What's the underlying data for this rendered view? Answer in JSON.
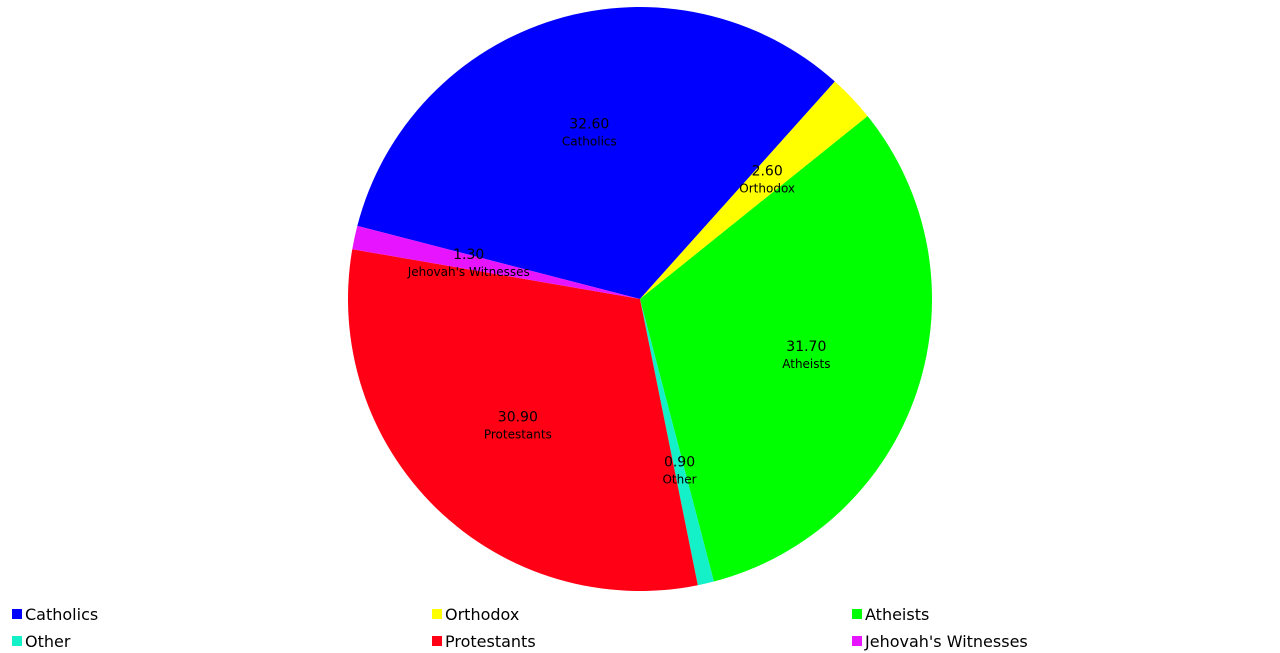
{
  "chart_data": {
    "type": "pie",
    "categories": [
      "Catholics",
      "Orthodox",
      "Atheists",
      "Other",
      "Protestants",
      "Jehovah's Witnesses"
    ],
    "values": [
      32.6,
      2.6,
      31.7,
      0.9,
      30.9,
      1.3
    ],
    "value_labels": [
      "32.60",
      "2.60",
      "31.70",
      "0.90",
      "30.90",
      "1.30"
    ],
    "colors": [
      "#0000ff",
      "#ffff00",
      "#00ff00",
      "#14f0c8",
      "#ff0014",
      "#e614ff"
    ],
    "legend_position": "bottom",
    "legend": {
      "rows": [
        [
          "Catholics",
          "Orthodox",
          "Atheists"
        ],
        [
          "Other",
          "Protestants",
          "Jehovah's Witnesses"
        ]
      ]
    }
  }
}
